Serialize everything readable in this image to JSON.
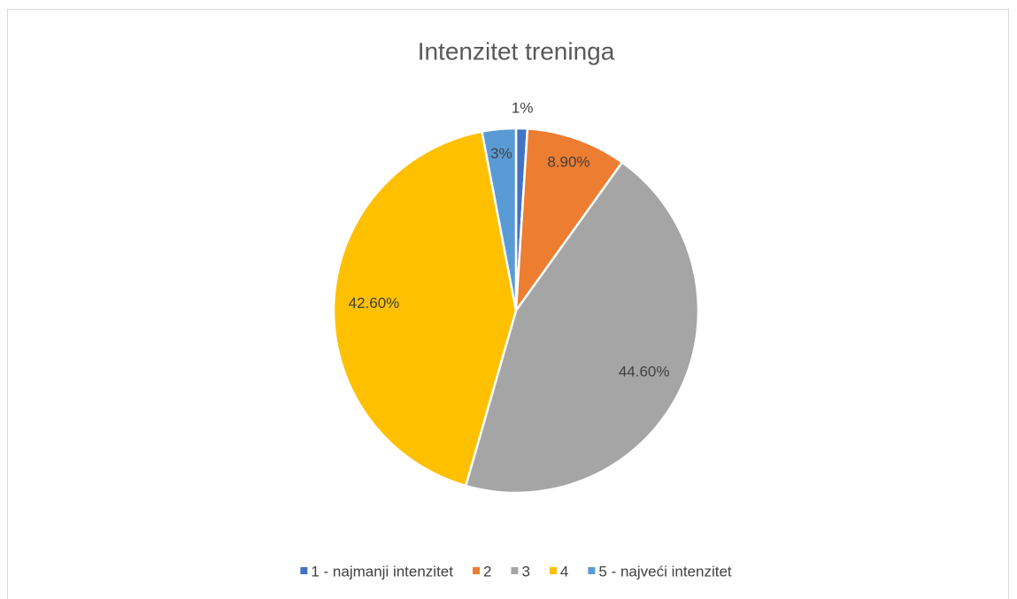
{
  "chart_data": {
    "type": "pie",
    "title": "Intenzitet treninga",
    "categories": [
      "1 - najmanji intenzitet",
      "2",
      "3",
      "4",
      "5 - najveći intenzitet"
    ],
    "values": [
      1,
      8.9,
      44.6,
      42.6,
      3
    ],
    "value_labels": [
      "1%",
      "8.90%",
      "44.60%",
      "42.60%",
      "3%"
    ],
    "colors": [
      "#4472c4",
      "#ed7d31",
      "#a5a5a5",
      "#ffc000",
      "#5b9bd5"
    ],
    "legend": "bottom"
  }
}
